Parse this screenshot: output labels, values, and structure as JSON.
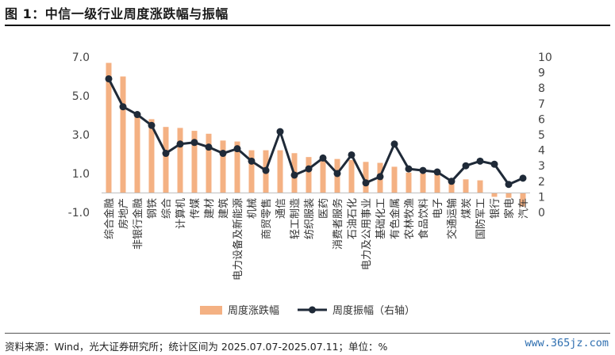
{
  "title": "图 1：中信一级行业周度涨跌幅与振幅",
  "source": "资料来源：Wind，光大证券研究所；统计区间为 2025.07.07-2025.07.11；单位：%",
  "watermark": "www.365jz.com",
  "chart_data": {
    "type": "bar+line",
    "categories": [
      "综合金融",
      "房地产",
      "非银行金融",
      "钢铁",
      "综合",
      "计算机",
      "传媒",
      "建材",
      "建筑",
      "电力设备及新能源",
      "机械",
      "商贸零售",
      "通信",
      "轻工制造",
      "纺织服装",
      "医药",
      "消费者服务",
      "石油石化",
      "电力及公用事业",
      "基础化工",
      "有色金属",
      "农林牧渔",
      "食品饮料",
      "电子",
      "交通运输",
      "煤炭",
      "国防军工",
      "银行",
      "家电",
      "汽车"
    ],
    "series": [
      {
        "name": "周度涨跌幅",
        "axis": "left",
        "type": "bar",
        "color": "#F4B183",
        "values": [
          6.7,
          6.0,
          4.0,
          3.8,
          3.4,
          3.35,
          3.2,
          3.05,
          2.7,
          2.65,
          2.2,
          2.2,
          2.2,
          2.05,
          1.85,
          1.8,
          1.75,
          1.7,
          1.6,
          1.55,
          1.35,
          1.05,
          1.0,
          0.95,
          0.75,
          0.7,
          0.65,
          -0.2,
          -0.25,
          -0.7
        ]
      },
      {
        "name": "周度振幅（右轴）",
        "axis": "right",
        "type": "line",
        "color": "#1F2A38",
        "values": [
          8.6,
          6.8,
          6.3,
          5.6,
          3.8,
          4.4,
          4.5,
          4.2,
          3.8,
          4.1,
          3.3,
          2.7,
          5.2,
          2.4,
          2.8,
          3.5,
          2.5,
          3.7,
          1.9,
          2.3,
          4.4,
          2.8,
          2.7,
          2.6,
          2.0,
          3.0,
          3.3,
          3.1,
          1.8,
          2.2
        ]
      }
    ],
    "y_left": {
      "min": -1.0,
      "max": 7.0,
      "ticks": [
        "7.0",
        "5.0",
        "3.0",
        "1.0",
        "-1.0"
      ]
    },
    "y_right": {
      "min": 0,
      "max": 10,
      "ticks": [
        "10",
        "9",
        "8",
        "7",
        "6",
        "5",
        "4",
        "3",
        "2",
        "1",
        "0"
      ]
    },
    "grid": false,
    "legend_position": "bottom"
  }
}
